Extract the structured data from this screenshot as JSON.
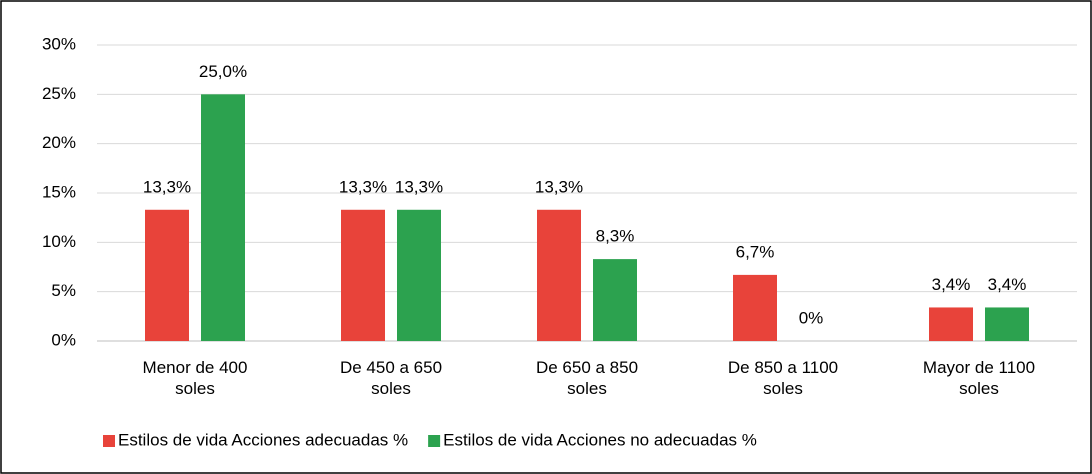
{
  "chart_data": {
    "type": "bar",
    "categories": [
      "Menor de 400 soles",
      "De 450 a 650 soles",
      "De 650 a 850 soles",
      "De 850 a 1100 soles",
      "Mayor de 1100 soles"
    ],
    "series": [
      {
        "name": "Estilos de vida Acciones adecuadas %",
        "color": "#e8433a",
        "values": [
          13.3,
          13.3,
          13.3,
          6.7,
          3.4
        ],
        "value_labels": [
          "13,3%",
          "13,3%",
          "13,3%",
          "6,7%",
          "3,4%"
        ]
      },
      {
        "name": "Estilos de vida Acciones no adecuadas %",
        "color": "#2ca24f",
        "values": [
          25.0,
          13.3,
          8.3,
          0,
          3.4
        ],
        "value_labels": [
          "25,0%",
          "13,3%",
          "8,3%",
          "0%",
          "3,4%"
        ]
      }
    ],
    "ylim": [
      0,
      30
    ],
    "yticks": [
      {
        "value": 0,
        "label": "0%"
      },
      {
        "value": 5,
        "label": "5%"
      },
      {
        "value": 10,
        "label": "10%"
      },
      {
        "value": 15,
        "label": "15%"
      },
      {
        "value": 20,
        "label": "20%"
      },
      {
        "value": 25,
        "label": "25%"
      },
      {
        "value": 30,
        "label": "30%"
      }
    ],
    "grid": true,
    "legend": "bottom"
  }
}
